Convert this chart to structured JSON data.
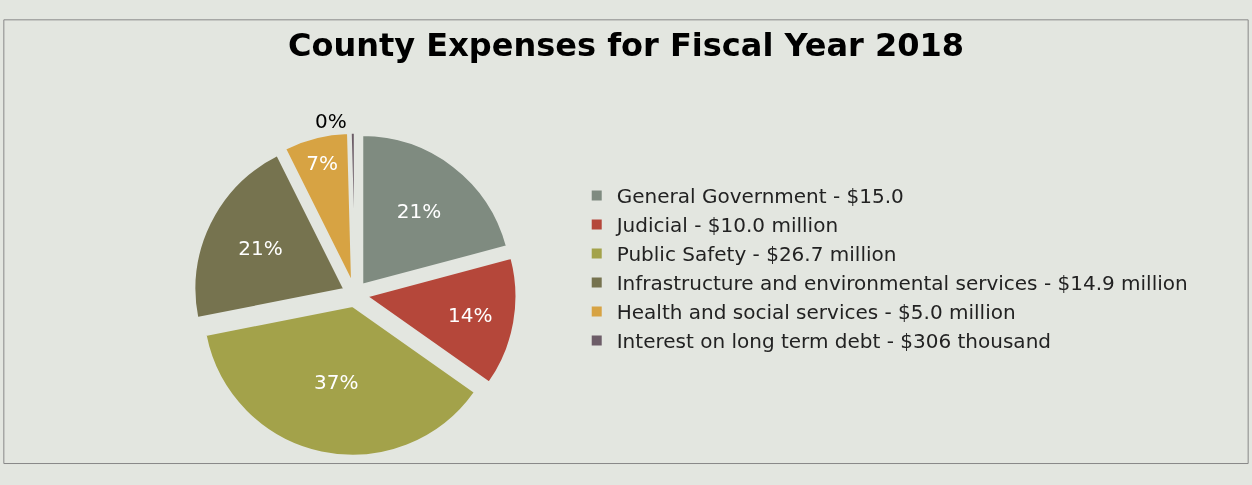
{
  "chart_data": {
    "type": "pie",
    "title": "County Expenses for Fiscal Year 2018",
    "categories": [
      "General Government - $15.0",
      "Judicial - $10.0 million",
      "Public Safety - $26.7 million",
      "Infrastructure and environmental services - $14.9 million",
      "Health and social services - $5.0 million",
      "Interest on long term debt - $306 thousand"
    ],
    "values": [
      20.86,
      13.91,
      37.13,
      20.72,
      6.95,
      0.43
    ],
    "value_labels": [
      "21%",
      "14%",
      "37%",
      "21%",
      "7%",
      "0%"
    ],
    "colors": [
      "#7f8b80",
      "#b5473a",
      "#a3a24a",
      "#76734f",
      "#d7a343",
      "#6d5d68"
    ],
    "legend": "right"
  }
}
